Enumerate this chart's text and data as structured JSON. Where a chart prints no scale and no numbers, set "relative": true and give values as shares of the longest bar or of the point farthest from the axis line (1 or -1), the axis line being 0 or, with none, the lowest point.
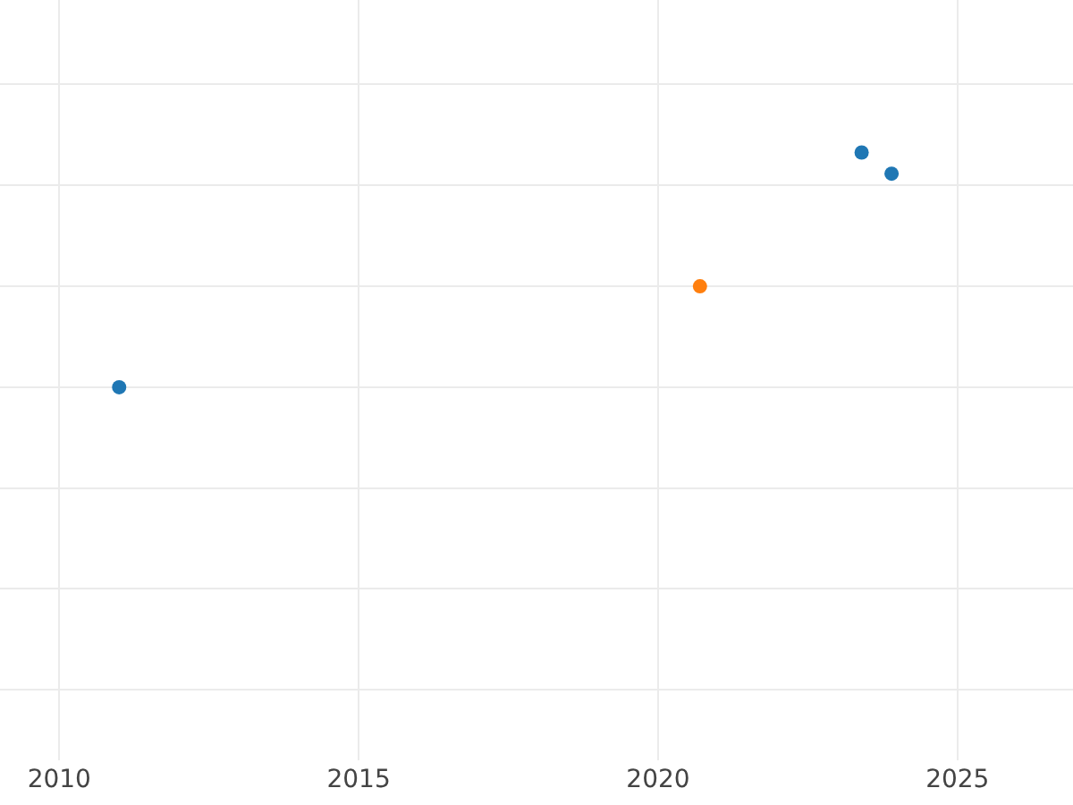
{
  "chart_data": {
    "type": "scatter",
    "relative": true,
    "grid": true,
    "marker": "circle",
    "xlim": [
      2009.01,
      2026.93
    ],
    "xticks": [
      2010,
      2015,
      2020,
      2025
    ],
    "series": [
      {
        "color": "#1f77b4",
        "x": [
          2011.0,
          2023.4,
          2023.9
        ],
        "values": [
          0,
          1,
          0.91
        ]
      },
      {
        "color": "#ff7f0e",
        "x": [
          2020.7
        ],
        "values": [
          0.43
        ]
      }
    ]
  }
}
